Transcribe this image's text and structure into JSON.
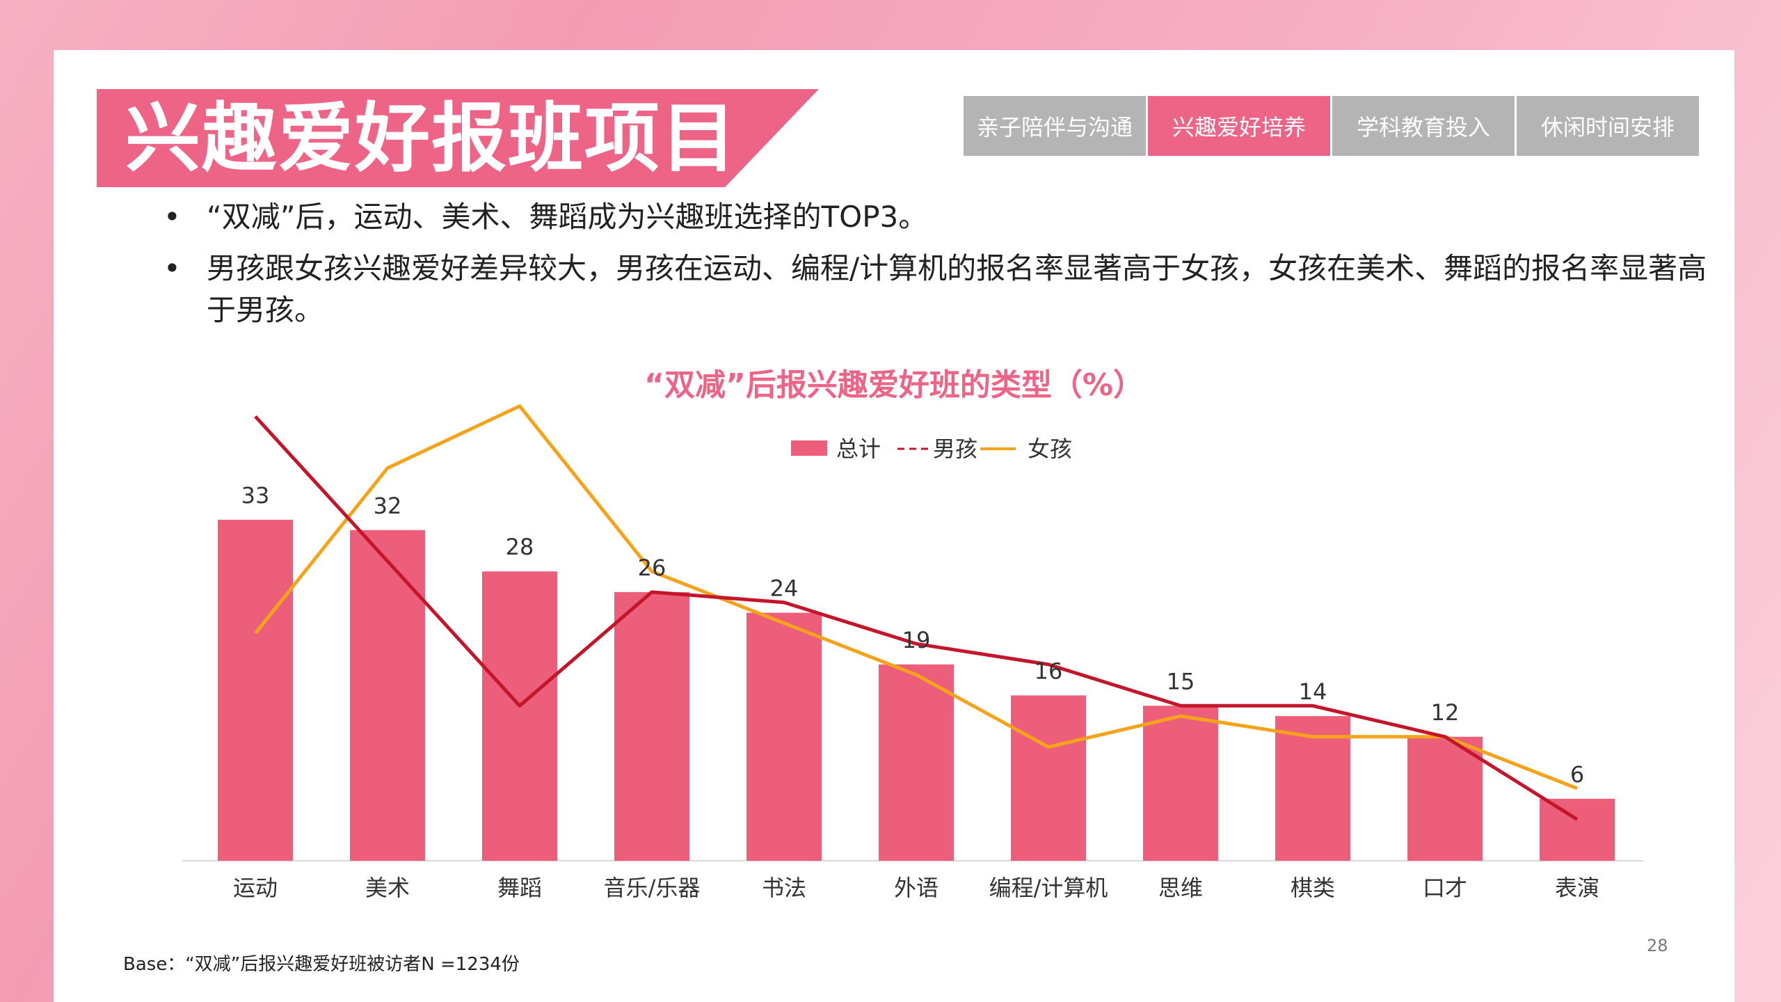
{
  "header": {
    "title": "兴趣爱好报班项目"
  },
  "tabs": [
    {
      "label": "亲子陪伴与沟通",
      "active": false
    },
    {
      "label": "兴趣爱好培养",
      "active": true
    },
    {
      "label": "学科教育投入",
      "active": false
    },
    {
      "label": "休闲时间安排",
      "active": false
    }
  ],
  "bullets": {
    "marker": "•",
    "items": [
      "“双减”后，运动、美术、舞蹈成为兴趣班选择的TOP3。",
      "男孩跟女孩兴趣爱好差异较大，男孩在运动、编程/计算机的报名率显著高于女孩，女孩在美术、舞蹈的报名率显著高于男孩。"
    ]
  },
  "footer": {
    "base_note": "Base：“双减”后报兴趣爱好班被访者N =1234份",
    "page_number": "28"
  },
  "colors": {
    "accent": "#ee6486",
    "bar": "#ec5e79",
    "boys_line": "#c4162b",
    "girls_line": "#f5a31a",
    "tab_inactive": "#b4b4b4"
  },
  "chart_data": {
    "type": "bar",
    "title": "“双减”后报兴趣爱好班的类型（%）",
    "categories": [
      "运动",
      "美术",
      "舞蹈",
      "音乐/乐器",
      "书法",
      "外语",
      "编程/计算机",
      "思维",
      "棋类",
      "口才",
      "表演"
    ],
    "series": [
      {
        "name": "总计",
        "type": "bar",
        "values": [
          33,
          32,
          28,
          26,
          24,
          19,
          16,
          15,
          14,
          12,
          6
        ]
      },
      {
        "name": "男孩",
        "type": "line",
        "values": [
          43,
          29,
          15,
          26,
          25,
          21,
          19,
          15,
          15,
          12,
          4
        ]
      },
      {
        "name": "女孩",
        "type": "line",
        "values": [
          22,
          38,
          44,
          28,
          23,
          18,
          11,
          14,
          12,
          12,
          7
        ]
      }
    ],
    "legend_position": "top-center",
    "data_labels": "total-series",
    "grid": false
  }
}
